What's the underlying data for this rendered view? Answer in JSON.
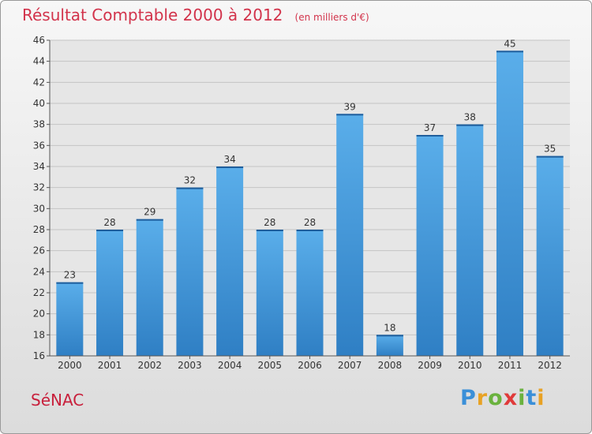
{
  "title": "Résultat Comptable 2000 à 2012",
  "subtitle": "(en milliers d'€)",
  "city": "SéNAC",
  "logo": {
    "text": "Proxiti",
    "colors": [
      "#3a8fd8",
      "#e8a224",
      "#6ab23e",
      "#e03a3a",
      "#6ab23e",
      "#3a8fd8",
      "#e8a224"
    ]
  },
  "colors": {
    "bar": "#4a9be0",
    "title": "#d2334b",
    "city": "#c8203c"
  },
  "chart_data": {
    "type": "bar",
    "title": "Résultat Comptable 2000 à 2012",
    "subtitle": "(en milliers d'€)",
    "categories": [
      "2000",
      "2001",
      "2002",
      "2003",
      "2004",
      "2005",
      "2006",
      "2007",
      "2008",
      "2009",
      "2010",
      "2011",
      "2012"
    ],
    "values": [
      23,
      28,
      29,
      32,
      34,
      28,
      28,
      39,
      18,
      37,
      38,
      45,
      35
    ],
    "ylim": [
      16,
      46
    ],
    "yticks": [
      16,
      18,
      20,
      22,
      24,
      26,
      28,
      30,
      32,
      34,
      36,
      38,
      40,
      42,
      44,
      46
    ],
    "grid": true,
    "legend": "none",
    "data_labels": true
  }
}
